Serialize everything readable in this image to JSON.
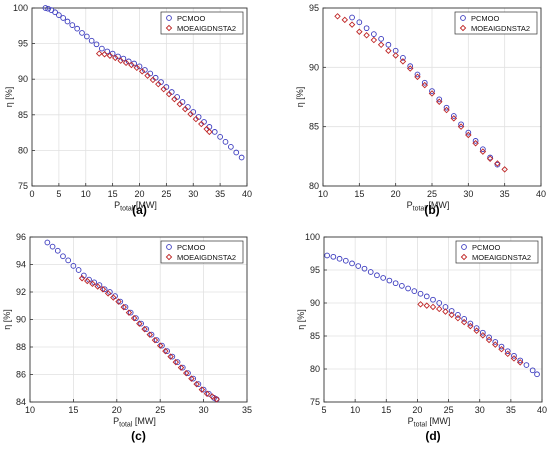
{
  "chart_data": [
    {
      "type": "scatter",
      "panel_label": "(a)",
      "xlabel_main": "P",
      "xlabel_sub": "total",
      "xlabel_unit": " [MW]",
      "ylabel": "η [%]",
      "xlim": [
        0,
        40
      ],
      "ylim": [
        75,
        100
      ],
      "xticks": [
        "0",
        "5",
        "10",
        "15",
        "20",
        "25",
        "30",
        "35",
        "40"
      ],
      "yticks": [
        "75",
        "80",
        "85",
        "90",
        "95",
        "100"
      ],
      "grid": true,
      "legend_position": "top-right",
      "series": [
        {
          "name": "PCMOO",
          "marker": "circle",
          "color": "#3b3bbf",
          "x": [
            2.5,
            3.0,
            3.6,
            4.3,
            5.0,
            5.8,
            6.6,
            7.5,
            8.4,
            9.3,
            10.2,
            11.1,
            12.0,
            13.0,
            14.0,
            15.0,
            16.0,
            17.0,
            18.0,
            19.0,
            20.0,
            21.0,
            22.0,
            23.0,
            24.0,
            25.0,
            26.0,
            27.0,
            28.0,
            29.0,
            30.0,
            31.0,
            32.0,
            33.0,
            34.0,
            35.0,
            36.0,
            37.0,
            38.0,
            39.0
          ],
          "y": [
            100.0,
            99.9,
            99.7,
            99.4,
            99.0,
            98.6,
            98.1,
            97.6,
            97.1,
            96.5,
            96.0,
            95.4,
            94.9,
            94.3,
            93.9,
            93.6,
            93.2,
            92.9,
            92.5,
            92.2,
            91.8,
            91.3,
            90.8,
            90.2,
            89.6,
            88.9,
            88.2,
            87.5,
            86.8,
            86.1,
            85.4,
            84.7,
            84.0,
            83.3,
            82.6,
            81.9,
            81.2,
            80.5,
            79.7,
            79.0
          ]
        },
        {
          "name": "MOEAIGDNSTA2",
          "marker": "diamond",
          "color": "#bf2626",
          "x": [
            12.5,
            13.5,
            14.5,
            15.5,
            16.5,
            17.5,
            18.5,
            19.5,
            20.5,
            21.5,
            22.5,
            23.5,
            24.5,
            25.5,
            26.5,
            27.5,
            28.5,
            29.5,
            30.5,
            31.5,
            32.5,
            33.0
          ],
          "y": [
            93.6,
            93.5,
            93.3,
            93.0,
            92.6,
            92.3,
            92.0,
            91.6,
            91.1,
            90.5,
            89.9,
            89.3,
            88.6,
            87.9,
            87.2,
            86.5,
            85.8,
            85.1,
            84.4,
            83.7,
            83.0,
            82.6
          ]
        }
      ]
    },
    {
      "type": "scatter",
      "panel_label": "(b)",
      "xlabel_main": "P",
      "xlabel_sub": "total",
      "xlabel_unit": " [MW]",
      "ylabel": "η [%]",
      "xlim": [
        10,
        40
      ],
      "ylim": [
        80,
        95
      ],
      "xticks": [
        "10",
        "15",
        "20",
        "25",
        "30",
        "35",
        "40"
      ],
      "yticks": [
        "80",
        "85",
        "90",
        "95"
      ],
      "grid": true,
      "legend_position": "top-right",
      "series": [
        {
          "name": "PCMOO",
          "marker": "circle",
          "color": "#3b3bbf",
          "x": [
            14.0,
            15.0,
            16.0,
            17.0,
            18.0,
            19.0,
            20.0,
            21.0,
            22.0,
            23.0,
            24.0,
            25.0,
            26.0,
            27.0,
            28.0,
            29.0,
            30.0,
            31.0,
            32.0,
            33.0,
            34.0
          ],
          "y": [
            94.2,
            93.8,
            93.3,
            92.8,
            92.4,
            91.9,
            91.4,
            90.8,
            90.1,
            89.4,
            88.7,
            88.0,
            87.3,
            86.6,
            85.9,
            85.2,
            84.5,
            83.8,
            83.1,
            82.4,
            81.8
          ]
        },
        {
          "name": "MOEAIGDNSTA2",
          "marker": "diamond",
          "color": "#bf2626",
          "x": [
            12.0,
            13.0,
            14.0,
            15.0,
            16.0,
            17.0,
            18.0,
            19.0,
            20.0,
            21.0,
            22.0,
            23.0,
            24.0,
            25.0,
            26.0,
            27.0,
            28.0,
            29.0,
            30.0,
            31.0,
            32.0,
            33.0,
            34.0,
            35.0
          ],
          "y": [
            94.3,
            94.0,
            93.6,
            93.0,
            92.7,
            92.3,
            91.9,
            91.4,
            91.0,
            90.5,
            89.9,
            89.2,
            88.5,
            87.8,
            87.1,
            86.4,
            85.7,
            85.0,
            84.3,
            83.6,
            82.9,
            82.3,
            81.9,
            81.4
          ]
        }
      ]
    },
    {
      "type": "scatter",
      "panel_label": "(c)",
      "xlabel_main": "P",
      "xlabel_sub": "total",
      "xlabel_unit": " [MW]",
      "ylabel": "η [%]",
      "xlim": [
        10,
        35
      ],
      "ylim": [
        84,
        96
      ],
      "xticks": [
        "10",
        "15",
        "20",
        "25",
        "30",
        "35"
      ],
      "yticks": [
        "84",
        "86",
        "88",
        "90",
        "92",
        "94",
        "96"
      ],
      "grid": true,
      "legend_position": "top-right",
      "series": [
        {
          "name": "PCMOO",
          "marker": "circle",
          "color": "#3b3bbf",
          "x": [
            12.0,
            12.6,
            13.2,
            13.8,
            14.4,
            15.0,
            15.6,
            16.2,
            16.8,
            17.4,
            18.0,
            18.6,
            19.2,
            19.8,
            20.4,
            21.0,
            21.6,
            22.2,
            22.8,
            23.4,
            24.0,
            24.6,
            25.2,
            25.8,
            26.4,
            27.0,
            27.6,
            28.2,
            28.8,
            29.4,
            30.0,
            30.6,
            31.2,
            31.5
          ],
          "y": [
            95.6,
            95.3,
            95.0,
            94.6,
            94.3,
            93.9,
            93.6,
            93.2,
            92.9,
            92.7,
            92.5,
            92.2,
            92.0,
            91.7,
            91.3,
            90.9,
            90.5,
            90.1,
            89.7,
            89.3,
            88.9,
            88.5,
            88.1,
            87.7,
            87.3,
            86.9,
            86.5,
            86.1,
            85.7,
            85.3,
            84.9,
            84.6,
            84.3,
            84.2
          ]
        },
        {
          "name": "MOEAIGDNSTA2",
          "marker": "diamond",
          "color": "#bf2626",
          "x": [
            16.0,
            16.6,
            17.2,
            17.8,
            18.4,
            19.0,
            19.6,
            20.2,
            20.8,
            21.4,
            22.0,
            22.6,
            23.2,
            23.8,
            24.4,
            25.0,
            25.6,
            26.2,
            26.8,
            27.4,
            28.0,
            28.6,
            29.2,
            29.8,
            30.4,
            31.0,
            31.5
          ],
          "y": [
            93.0,
            92.8,
            92.6,
            92.4,
            92.2,
            91.9,
            91.6,
            91.3,
            90.9,
            90.5,
            90.1,
            89.7,
            89.3,
            88.9,
            88.5,
            88.1,
            87.7,
            87.3,
            86.9,
            86.5,
            86.1,
            85.7,
            85.3,
            84.9,
            84.6,
            84.4,
            84.2
          ]
        }
      ]
    },
    {
      "type": "scatter",
      "panel_label": "(d)",
      "xlabel_main": "P",
      "xlabel_sub": "total",
      "xlabel_unit": " [MW]",
      "ylabel": "η [%]",
      "xlim": [
        5,
        40
      ],
      "ylim": [
        75,
        100
      ],
      "xticks": [
        "5",
        "10",
        "15",
        "20",
        "25",
        "30",
        "35",
        "40"
      ],
      "yticks": [
        "75",
        "80",
        "85",
        "90",
        "95",
        "100"
      ],
      "grid": true,
      "legend_position": "top-right",
      "series": [
        {
          "name": "PCMOO",
          "marker": "circle",
          "color": "#3b3bbf",
          "x": [
            5.5,
            6.5,
            7.5,
            8.5,
            9.5,
            10.5,
            11.5,
            12.5,
            13.5,
            14.5,
            15.5,
            16.5,
            17.5,
            18.5,
            19.5,
            20.5,
            21.5,
            22.5,
            23.5,
            24.5,
            25.5,
            26.5,
            27.5,
            28.5,
            29.5,
            30.5,
            31.5,
            32.5,
            33.5,
            34.5,
            35.5,
            36.5,
            37.5,
            38.5,
            39.2
          ],
          "y": [
            97.2,
            97.0,
            96.7,
            96.4,
            96.0,
            95.6,
            95.2,
            94.7,
            94.2,
            93.8,
            93.4,
            93.0,
            92.6,
            92.2,
            91.8,
            91.4,
            91.0,
            90.5,
            90.0,
            89.4,
            88.8,
            88.2,
            87.6,
            86.9,
            86.2,
            85.5,
            84.8,
            84.1,
            83.4,
            82.7,
            82.0,
            81.3,
            80.6,
            79.8,
            79.2
          ]
        },
        {
          "name": "MOEAIGDNSTA2",
          "marker": "diamond",
          "color": "#bf2626",
          "x": [
            20.5,
            21.5,
            22.5,
            23.5,
            24.5,
            25.5,
            26.5,
            27.5,
            28.5,
            29.5,
            30.5,
            31.5,
            32.5,
            33.5,
            34.5,
            35.5,
            36.5
          ],
          "y": [
            89.8,
            89.6,
            89.4,
            89.1,
            88.7,
            88.2,
            87.7,
            87.1,
            86.5,
            85.8,
            85.1,
            84.4,
            83.7,
            83.0,
            82.3,
            81.6,
            81.0
          ]
        }
      ]
    }
  ]
}
